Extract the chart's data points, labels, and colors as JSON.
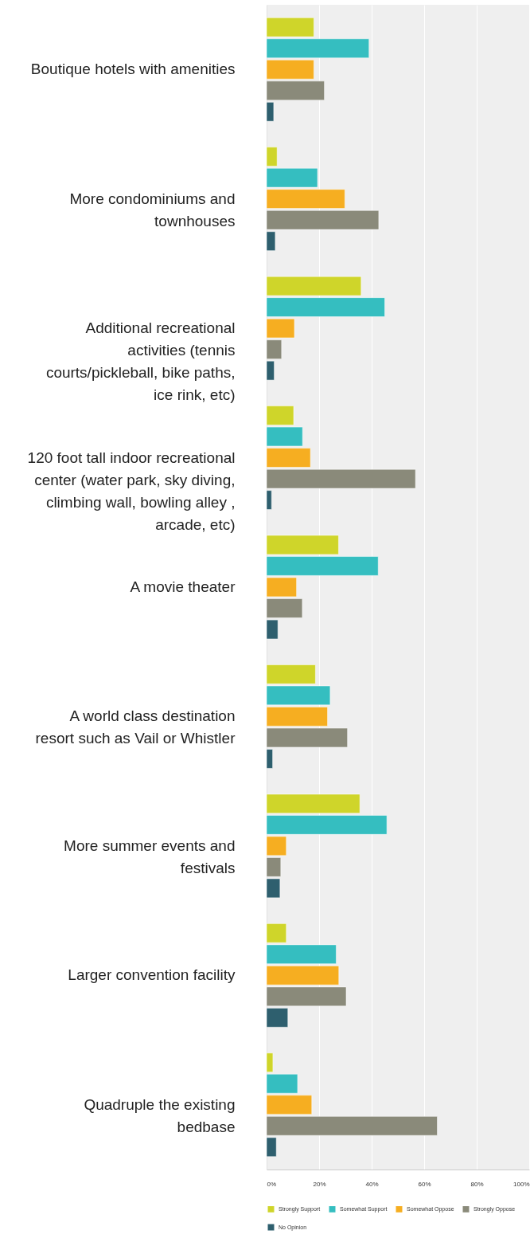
{
  "chart_data": {
    "type": "bar",
    "orientation": "horizontal",
    "categories": [
      "Boutique hotels with amenities",
      "More condominiums and townhouses",
      "Additional recreational activities (tennis courts/pickleball, bike paths, ice rink, etc)",
      "120 foot tall indoor recreational center (water park, sky diving, climbing wall, bowling alley , arcade, etc)",
      "A movie theater",
      "A world class destination resort such as Vail or Whistler",
      "More summer events and festivals",
      "Larger convention facility",
      "Quadruple the existing bedbase"
    ],
    "series": [
      {
        "name": "Strongly Support",
        "color": "#cfd52a",
        "values": [
          18,
          4,
          36,
          10.3,
          27.4,
          18.6,
          35.5,
          7.5,
          2.4
        ]
      },
      {
        "name": "Somewhat Support",
        "color": "#35bec0",
        "values": [
          39,
          19.4,
          45,
          13.7,
          42.5,
          24.2,
          45.8,
          26.5,
          11.8
        ]
      },
      {
        "name": "Somewhat Oppose",
        "color": "#f6ae21",
        "values": [
          18,
          29.8,
          10.6,
          16.7,
          11.4,
          23.2,
          7.5,
          27.5,
          17.2
        ]
      },
      {
        "name": "Strongly Oppose",
        "color": "#8a8a7a",
        "values": [
          22,
          42.7,
          5.7,
          56.7,
          13.6,
          30.8,
          5.4,
          30.3,
          65
        ]
      },
      {
        "name": "No Opinion",
        "color": "#2e5f6e",
        "values": [
          2.7,
          3.3,
          2.9,
          1.9,
          4.3,
          2.3,
          5.1,
          8.1,
          3.7
        ]
      }
    ],
    "xlim": [
      0,
      100
    ],
    "xticks": [
      {
        "value": 0,
        "label": "0%"
      },
      {
        "value": 20,
        "label": "20%"
      },
      {
        "value": 40,
        "label": "40%"
      },
      {
        "value": 60,
        "label": "60%"
      },
      {
        "value": 80,
        "label": "80%"
      },
      {
        "value": 100,
        "label": "100%"
      }
    ],
    "grid": "x",
    "legend": "bottom"
  }
}
